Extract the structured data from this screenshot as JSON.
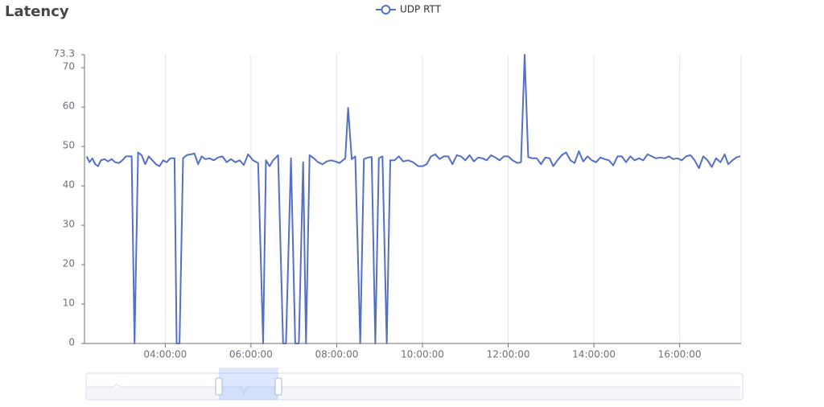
{
  "chart_data": {
    "type": "line",
    "title": "Latency",
    "series": [
      {
        "name": "UDP RTT",
        "color": "#5470c6",
        "x": [
          "02:10:00",
          "02:14:00",
          "02:18:00",
          "02:22:00",
          "02:26:00",
          "02:30:00",
          "02:35:00",
          "02:40:00",
          "02:45:00",
          "02:50:00",
          "02:55:00",
          "03:00:00",
          "03:05:00",
          "03:13:00",
          "03:17:00",
          "03:22:00",
          "03:27:00",
          "03:32:00",
          "03:37:00",
          "03:42:00",
          "03:47:00",
          "03:52:00",
          "03:57:00",
          "04:02:00",
          "04:07:00",
          "04:13:00",
          "04:16:00",
          "04:20:00",
          "04:25:00",
          "04:30:00",
          "04:36:00",
          "04:41:00",
          "04:46:00",
          "04:51:00",
          "04:56:00",
          "05:02:00",
          "05:08:00",
          "05:14:00",
          "05:20:00",
          "05:26:00",
          "05:32:00",
          "05:38:00",
          "05:44:00",
          "05:50:00",
          "05:56:00",
          "06:03:00",
          "06:10:00",
          "06:17:00",
          "06:21:00",
          "06:26:00",
          "06:31:00",
          "06:38:00",
          "06:45:00",
          "06:49:00",
          "06:56:00",
          "07:02:00",
          "07:07:00",
          "07:13:00",
          "07:17:00",
          "07:22:00",
          "07:28:00",
          "07:34:00",
          "07:40:00",
          "07:46:00",
          "07:52:00",
          "07:58:00",
          "08:04:00",
          "08:12:00",
          "08:16:00",
          "08:21:00",
          "08:26:00",
          "08:33:00",
          "08:38:00",
          "08:44:00",
          "08:49:00",
          "08:54:00",
          "08:59:00",
          "09:04:00",
          "09:10:00",
          "09:15:00",
          "09:21:00",
          "09:27:00",
          "09:33:00",
          "09:40:00",
          "09:47:00",
          "09:54:00",
          "10:00:00",
          "10:06:00",
          "10:12:00",
          "10:18:00",
          "10:24:00",
          "10:30:00",
          "10:36:00",
          "10:42:00",
          "10:48:00",
          "10:54:00",
          "11:00:00",
          "11:06:00",
          "11:12:00",
          "11:18:00",
          "11:24:00",
          "11:30:00",
          "11:36:00",
          "11:42:00",
          "11:48:00",
          "11:54:00",
          "12:00:00",
          "12:06:00",
          "12:13:00",
          "12:18:00",
          "12:23:00",
          "12:28:00",
          "12:34:00",
          "12:40:00",
          "12:46:00",
          "12:52:00",
          "12:58:00",
          "13:03:00",
          "13:09:00",
          "13:15:00",
          "13:21:00",
          "13:27:00",
          "13:33:00",
          "13:39:00",
          "13:45:00",
          "13:51:00",
          "13:57:00",
          "14:03:00",
          "14:09:00",
          "14:15:00",
          "14:21:00",
          "14:27:00",
          "14:33:00",
          "14:39:00",
          "14:45:00",
          "14:51:00",
          "14:57:00",
          "15:03:00",
          "15:09:00",
          "15:15:00",
          "15:21:00",
          "15:27:00",
          "15:33:00",
          "15:39:00",
          "15:45:00",
          "15:51:00",
          "15:57:00",
          "16:03:00",
          "16:09:00",
          "16:15:00",
          "16:21:00",
          "16:27:00",
          "16:33:00",
          "16:39:00",
          "16:45:00",
          "16:51:00",
          "16:57:00",
          "17:03:00",
          "17:08:00",
          "17:14:00",
          "17:20:00",
          "17:25:00"
        ],
        "values": [
          47.5,
          46,
          47,
          45.5,
          45,
          46.5,
          46.8,
          46.2,
          46.8,
          46,
          45.8,
          46.5,
          47.5,
          47.5,
          0,
          48.5,
          47.8,
          45.5,
          47.5,
          46.5,
          45.5,
          45,
          46.5,
          46,
          47,
          47,
          0,
          0,
          47,
          47.8,
          48,
          48.2,
          45.5,
          47.5,
          46.8,
          47,
          46.5,
          47.2,
          47.5,
          46,
          46.8,
          46,
          46.5,
          45.3,
          48,
          46.5,
          45.8,
          0,
          46.5,
          45,
          46.5,
          47.8,
          0,
          0,
          47,
          0,
          0,
          46,
          0,
          47.8,
          47,
          46,
          45.5,
          46.2,
          46.5,
          46.2,
          45.8,
          47,
          59.8,
          46.8,
          47.5,
          0,
          46.8,
          47.2,
          47.3,
          0,
          47,
          47.5,
          0,
          46.5,
          46.5,
          47.5,
          46.2,
          46.5,
          46,
          45,
          45,
          45.5,
          47.5,
          48,
          46.8,
          47.5,
          47.5,
          45.5,
          47.8,
          47.5,
          46.5,
          47.8,
          46.2,
          47.2,
          47,
          46.5,
          47.8,
          47.2,
          46.5,
          47.5,
          47.5,
          46.5,
          45.8,
          46,
          73.3,
          47.3,
          47,
          47,
          45.5,
          47.2,
          47,
          45,
          46.5,
          47.8,
          48.5,
          46.5,
          45.8,
          48.8,
          46.2,
          47.5,
          46.5,
          46,
          47.2,
          46.8,
          46.5,
          45.2,
          47.5,
          47.5,
          46,
          47.5,
          46.5,
          47,
          46.5,
          48,
          47.5,
          47,
          47.2,
          47,
          47.5,
          46.8,
          47,
          46.5,
          47.5,
          47.8,
          46.5,
          44.5,
          47.5,
          46.5,
          44.8,
          47,
          46,
          48,
          45.5,
          46.5,
          47.3,
          47.5
        ]
      }
    ],
    "xlim": [
      "02:07:00",
      "17:26:00"
    ],
    "xticks": [
      "04:00:00",
      "06:00:00",
      "08:00:00",
      "10:00:00",
      "12:00:00",
      "14:00:00",
      "16:00:00"
    ],
    "ylim": [
      0,
      73.3
    ],
    "yticks": [
      0,
      10,
      20,
      30,
      40,
      50,
      60,
      70,
      73.3
    ],
    "grid": "x"
  }
}
